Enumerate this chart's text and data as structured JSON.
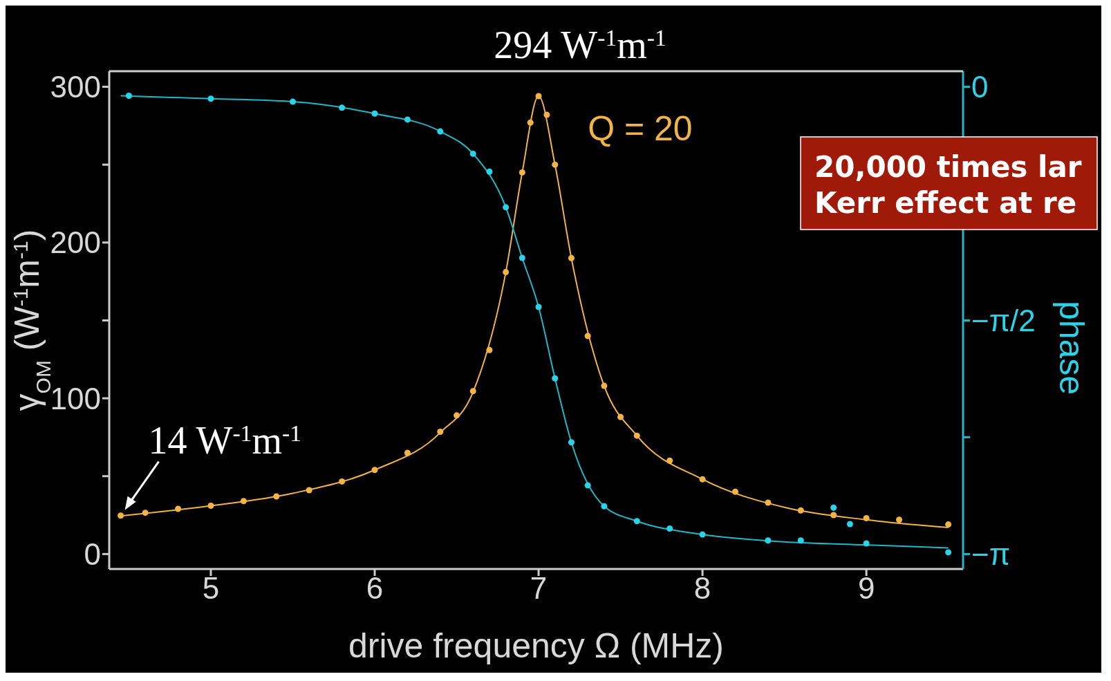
{
  "chart_data": {
    "type": "scatter",
    "xlabel": "drive frequency Ω (MHz)",
    "ylabel": "γ$_{OM}$ (W$^{-1}$m$^{-1}$)",
    "y2label": "phase",
    "xlim": [
      4.38,
      9.59
    ],
    "xticks": [
      5,
      6,
      7,
      8,
      9
    ],
    "ylim": [
      -9.6,
      310
    ],
    "yticks": [
      0,
      {
        "value": 50,
        "label": null
      },
      100,
      {
        "value": 150,
        "label": null
      },
      200,
      {
        "value": 250,
        "label": null
      },
      300
    ],
    "y2lim": [
      -3.242,
      0.105
    ],
    "y2ticks": [
      {
        "value": 0,
        "label": "0"
      },
      {
        "value": -0.785,
        "label": null
      },
      {
        "value": -1.571,
        "label": "−π/2"
      },
      {
        "value": -2.356,
        "label": null
      },
      {
        "value": -3.1416,
        "label": "−π"
      }
    ],
    "series": [
      {
        "marker": "circle",
        "color": "#f2b347",
        "x": [
          4.45,
          4.6,
          4.8,
          5.0,
          5.2,
          5.4,
          5.6,
          5.8,
          6.0,
          6.2,
          6.4,
          6.5,
          6.6,
          6.7,
          6.8,
          6.9,
          6.95,
          7.0,
          7.05,
          7.1,
          7.2,
          7.3,
          7.4,
          7.5,
          7.6,
          7.8,
          8.0,
          8.2,
          8.4,
          8.6,
          8.8,
          9.0,
          9.2,
          9.5
        ],
        "values": [
          24.7,
          26.5,
          29,
          31,
          34,
          37,
          41,
          46.6,
          54,
          65,
          78.5,
          89,
          104.6,
          131,
          181,
          245,
          277,
          294,
          282,
          250,
          190,
          140,
          108,
          88,
          76,
          60,
          48,
          40,
          33,
          28,
          25,
          23,
          22,
          19
        ]
      },
      {
        "type": "line",
        "marker": "none",
        "color": "#f2b347",
        "x": [
          4.45,
          5.0,
          5.5,
          6.0,
          6.4,
          6.6,
          6.8,
          6.9,
          7.0,
          7.1,
          7.2,
          7.4,
          7.6,
          8.0,
          8.5,
          9.0,
          9.5
        ],
        "values": [
          24.5,
          31,
          39,
          54,
          78,
          104,
          181,
          245,
          294,
          250,
          190,
          108,
          76,
          48,
          30,
          22,
          17
        ]
      },
      {
        "marker": "circle",
        "axis": "y2",
        "color": "#2ad3e8",
        "x": [
          4.5,
          5.0,
          5.5,
          5.8,
          6.0,
          6.2,
          6.4,
          6.6,
          6.7,
          6.8,
          6.9,
          7.0,
          7.1,
          7.2,
          7.3,
          7.4,
          7.6,
          7.8,
          8.0,
          8.4,
          8.6,
          8.8,
          8.9,
          9.0,
          9.5
        ],
        "values": [
          -0.06,
          -0.08,
          -0.1,
          -0.14,
          -0.18,
          -0.22,
          -0.3,
          -0.45,
          -0.57,
          -0.81,
          -1.15,
          -1.48,
          -1.96,
          -2.39,
          -2.68,
          -2.82,
          -2.92,
          -2.97,
          -3.01,
          -3.05,
          -3.05,
          -2.83,
          -2.94,
          -3.07,
          -3.13
        ]
      },
      {
        "type": "line",
        "marker": "none",
        "axis": "y2",
        "color": "#1fb8c8",
        "x": [
          4.45,
          5.0,
          5.5,
          6.0,
          6.4,
          6.6,
          6.8,
          6.9,
          7.0,
          7.1,
          7.2,
          7.4,
          7.6,
          8.0,
          8.5,
          9.0,
          9.5
        ],
        "values": [
          -0.06,
          -0.08,
          -0.1,
          -0.18,
          -0.3,
          -0.45,
          -0.81,
          -1.15,
          -1.48,
          -1.96,
          -2.39,
          -2.82,
          -2.92,
          -3.01,
          -3.06,
          -3.08,
          -3.1
        ]
      }
    ],
    "annotations": [
      {
        "text": "294 W$^{-1}$m$^{-1}$",
        "x": 7,
        "y": 294
      },
      {
        "text": "14 W$^{-1}$m$^{-1}$",
        "x": 4.45,
        "y": 24.7
      },
      "Q = 20",
      "20,000 times lar\nKerr effect at re"
    ]
  }
}
